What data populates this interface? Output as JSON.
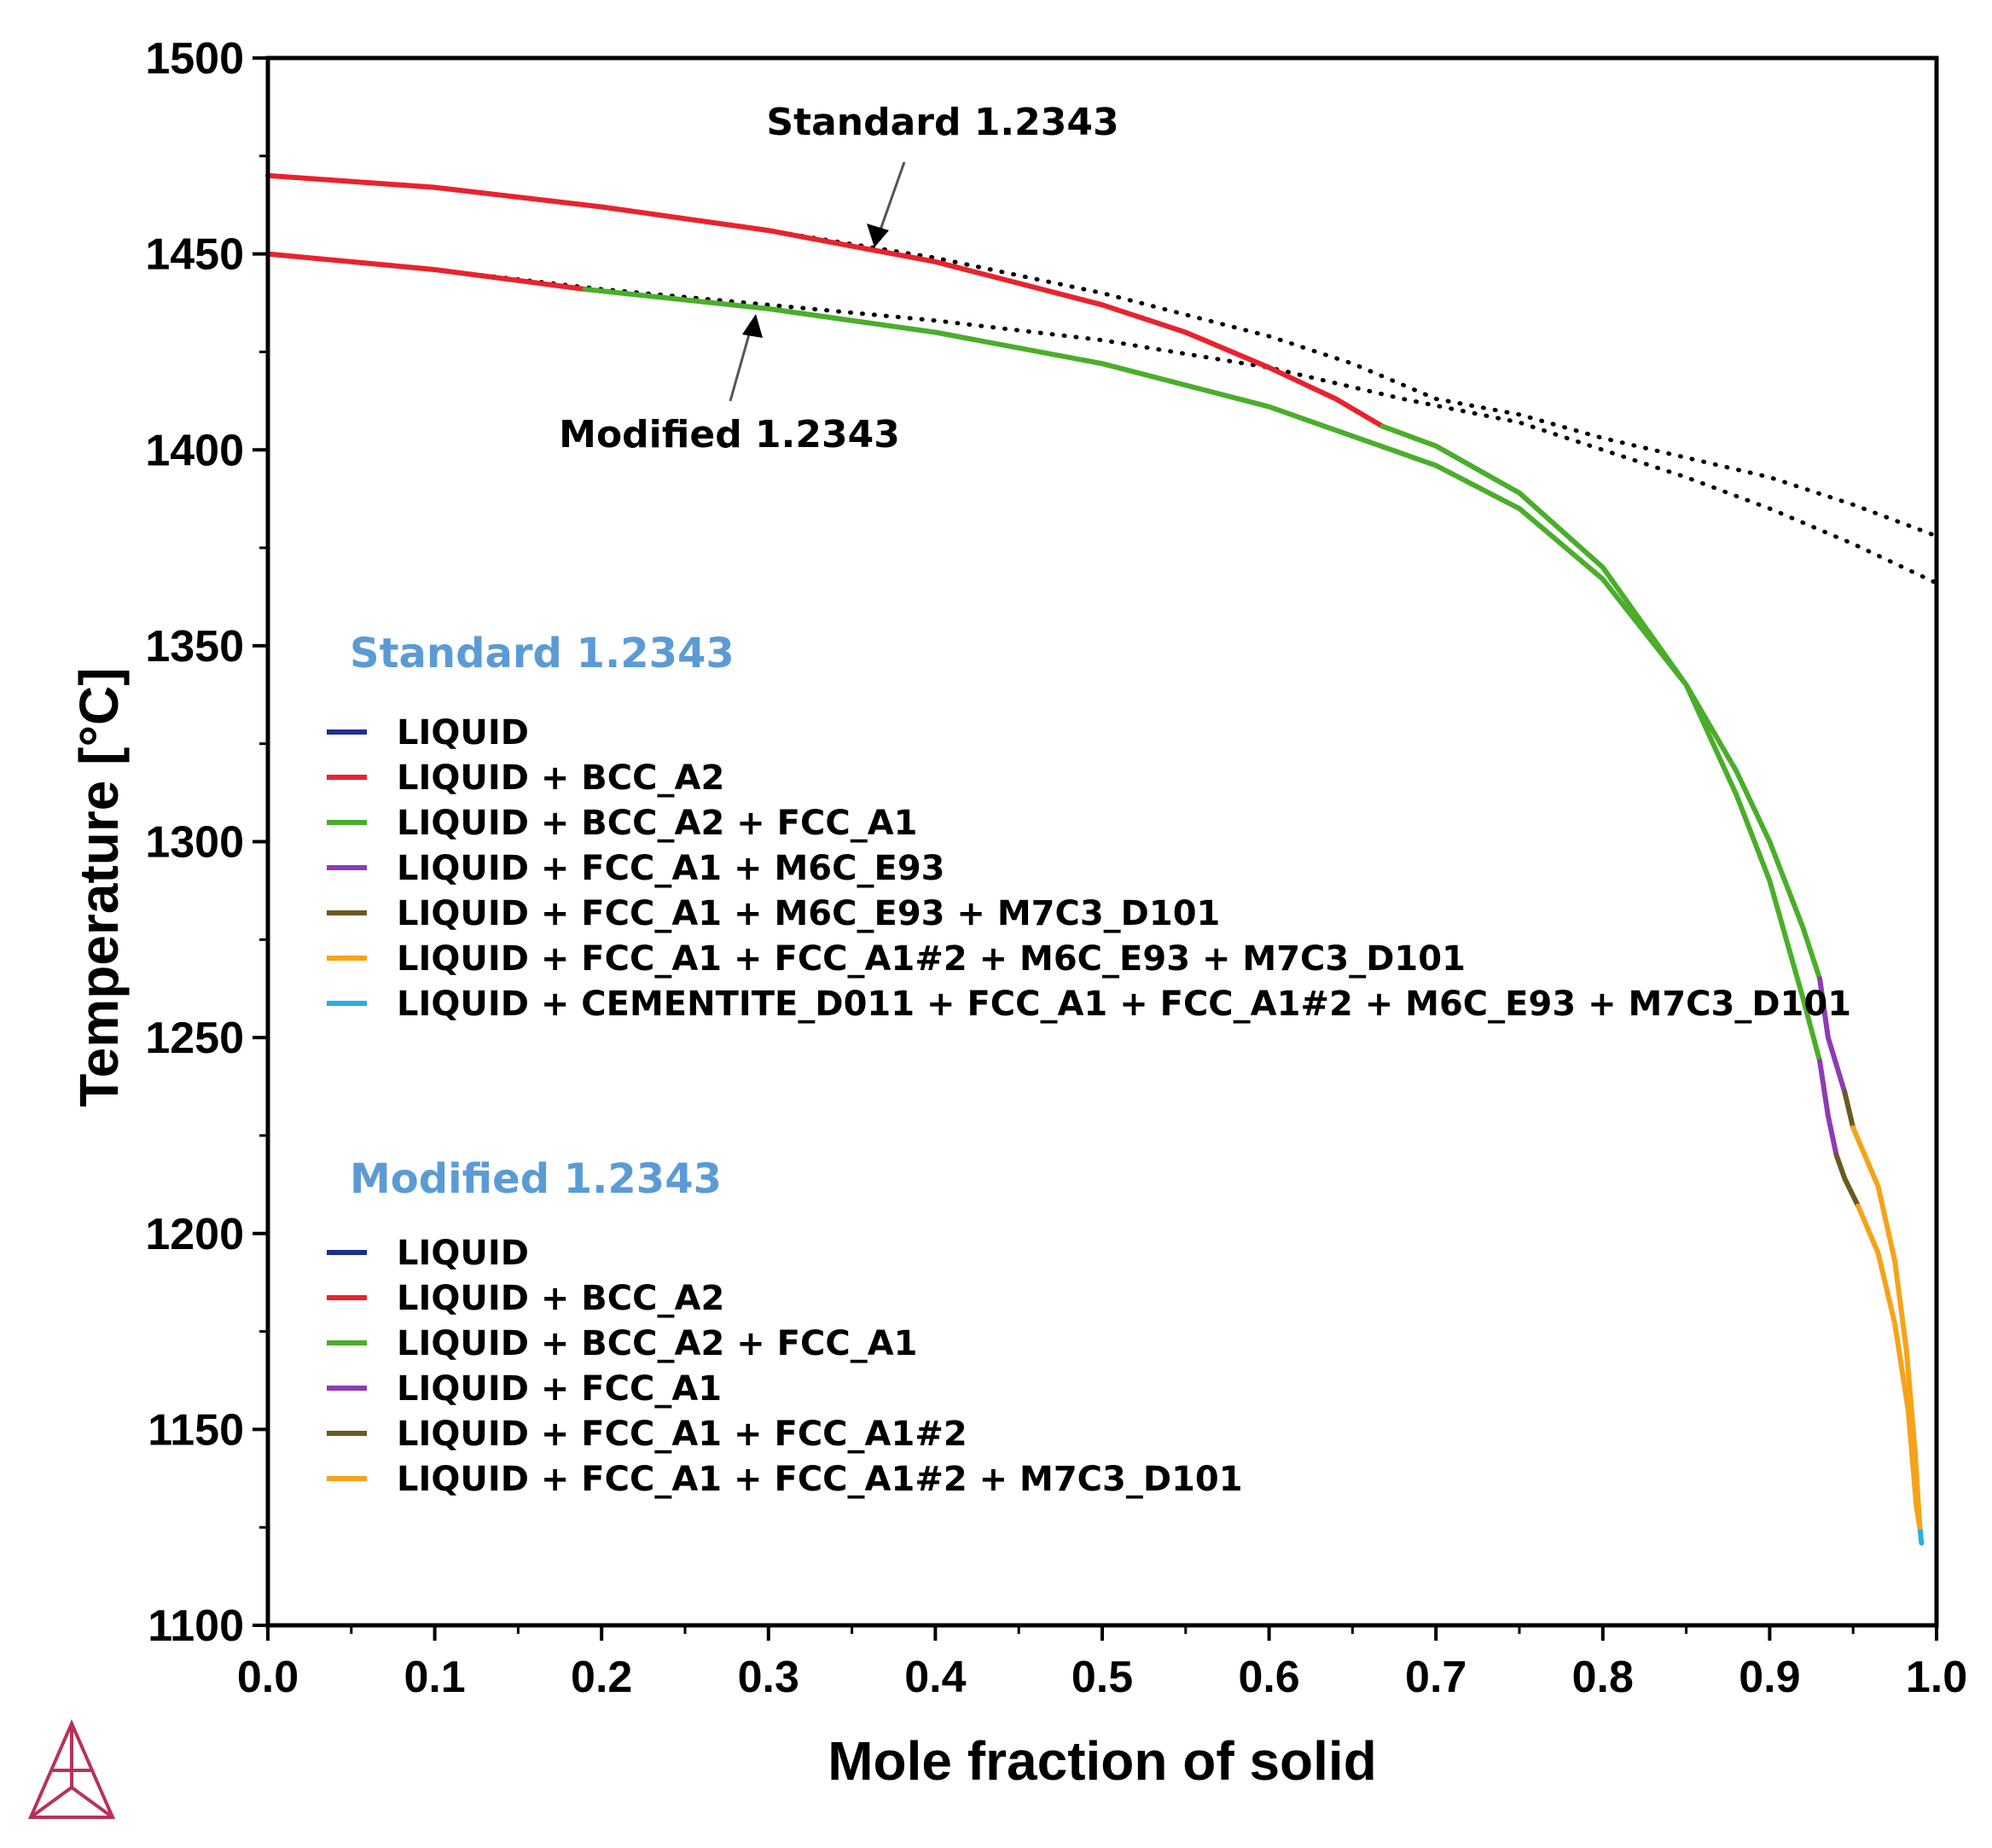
{
  "chart_data": {
    "type": "line",
    "xlabel": "Mole fraction of solid",
    "ylabel": "Temperature [°C]",
    "xlim": [
      0.0,
      1.0
    ],
    "ylim": [
      1100,
      1500
    ],
    "xticks": [
      "0.0",
      "0.1",
      "0.2",
      "0.3",
      "0.4",
      "0.5",
      "0.6",
      "0.7",
      "0.8",
      "0.9",
      "1.0"
    ],
    "yticks": [
      "1100",
      "1150",
      "1200",
      "1250",
      "1300",
      "1350",
      "1400",
      "1450",
      "1500"
    ],
    "annotations": [
      {
        "id": "std",
        "text": "Standard 1.2343",
        "target_x": 0.36,
        "target_y": 1451
      },
      {
        "id": "mod",
        "text": "Modified 1.2343",
        "target_x": 0.29,
        "target_y": 1437
      }
    ],
    "legends": [
      {
        "title": "Standard 1.2343",
        "entries": [
          {
            "label": "LIQUID",
            "color": "#1f2f8f"
          },
          {
            "label": "LIQUID + BCC_A2",
            "color": "#e8232d"
          },
          {
            "label": "LIQUID + BCC_A2 + FCC_A1",
            "color": "#4aae2a"
          },
          {
            "label": "LIQUID + FCC_A1 + M6C_E93",
            "color": "#8e3bb5"
          },
          {
            "label": "LIQUID + FCC_A1 + M6C_E93 + M7C3_D101",
            "color": "#6b5a1e"
          },
          {
            "label": "LIQUID + FCC_A1 + FCC_A1#2 + M6C_E93 + M7C3_D101",
            "color": "#f5a31a"
          },
          {
            "label": "LIQUID + CEMENTITE_D011 + FCC_A1 + FCC_A1#2 + M6C_E93 + M7C3_D101",
            "color": "#29aee6"
          }
        ]
      },
      {
        "title": "Modified 1.2343",
        "entries": [
          {
            "label": "LIQUID",
            "color": "#1f2f8f"
          },
          {
            "label": "LIQUID + BCC_A2",
            "color": "#e8232d"
          },
          {
            "label": "LIQUID + BCC_A2 + FCC_A1",
            "color": "#4aae2a"
          },
          {
            "label": "LIQUID + FCC_A1",
            "color": "#8e3bb5"
          },
          {
            "label": "LIQUID + FCC_A1 + FCC_A1#2",
            "color": "#6b5a1e"
          },
          {
            "label": "LIQUID + FCC_A1 + FCC_A1#2 + M7C3_D101",
            "color": "#f5a31a"
          }
        ]
      }
    ],
    "series": [
      {
        "name": "Standard 1.2343 (equilibrium)",
        "style": "dotted",
        "color": "#000000",
        "points": [
          [
            0,
            1470
          ],
          [
            0.1,
            1467
          ],
          [
            0.2,
            1462
          ],
          [
            0.3,
            1456
          ],
          [
            0.4,
            1449
          ],
          [
            0.5,
            1440
          ],
          [
            0.6,
            1429
          ],
          [
            0.65,
            1422
          ],
          [
            0.7,
            1413
          ],
          [
            0.75,
            1409
          ],
          [
            0.8,
            1403
          ],
          [
            0.85,
            1398
          ],
          [
            0.9,
            1393
          ],
          [
            0.95,
            1386
          ],
          [
            1.0,
            1378
          ]
        ]
      },
      {
        "name": "Modified 1.2343 (equilibrium)",
        "style": "dotted",
        "color": "#000000",
        "points": [
          [
            0,
            1450
          ],
          [
            0.1,
            1446
          ],
          [
            0.2,
            1441
          ],
          [
            0.3,
            1437
          ],
          [
            0.4,
            1433
          ],
          [
            0.5,
            1428
          ],
          [
            0.6,
            1421
          ],
          [
            0.68,
            1413
          ],
          [
            0.75,
            1407
          ],
          [
            0.8,
            1400
          ],
          [
            0.85,
            1393
          ],
          [
            0.9,
            1385
          ],
          [
            0.95,
            1376
          ],
          [
            1.0,
            1366
          ]
        ]
      },
      {
        "name": "Standard: LIQUID + BCC_A2",
        "color": "#e8232d",
        "points": [
          [
            0,
            1470
          ],
          [
            0.1,
            1467
          ],
          [
            0.2,
            1462
          ],
          [
            0.3,
            1456
          ],
          [
            0.4,
            1448
          ],
          [
            0.5,
            1437
          ],
          [
            0.55,
            1430
          ],
          [
            0.6,
            1421
          ],
          [
            0.64,
            1413
          ],
          [
            0.668,
            1406
          ]
        ]
      },
      {
        "name": "Standard: LIQUID + BCC_A2 + FCC_A1",
        "color": "#4aae2a",
        "points": [
          [
            0.668,
            1406
          ],
          [
            0.7,
            1401
          ],
          [
            0.75,
            1389
          ],
          [
            0.8,
            1370
          ],
          [
            0.85,
            1340
          ],
          [
            0.88,
            1312
          ],
          [
            0.9,
            1290
          ],
          [
            0.92,
            1260
          ],
          [
            0.93,
            1244
          ]
        ]
      },
      {
        "name": "Standard: LIQUID + FCC_A1 + M6C_E93",
        "color": "#8e3bb5",
        "points": [
          [
            0.93,
            1244
          ],
          [
            0.935,
            1230
          ],
          [
            0.94,
            1220
          ]
        ]
      },
      {
        "name": "Standard: LIQUID + FCC_A1 + M6C_E93 + M7C3_D101",
        "color": "#6b5a1e",
        "points": [
          [
            0.94,
            1220
          ],
          [
            0.945,
            1214
          ],
          [
            0.953,
            1207
          ]
        ]
      },
      {
        "name": "Standard: LIQUID + FCC_A1 + FCC_A1#2 + M6C_E93 + M7C3_D101",
        "color": "#f5a31a",
        "points": [
          [
            0.953,
            1207
          ],
          [
            0.965,
            1195
          ],
          [
            0.975,
            1177
          ],
          [
            0.983,
            1155
          ],
          [
            0.988,
            1130
          ],
          [
            0.99,
            1125
          ]
        ]
      },
      {
        "name": "Standard: LIQUID + CEMENTITE_D011 + FCC_A1 + FCC_A1#2 + M6C_E93 + M7C3_D101",
        "color": "#29aee6",
        "points": [
          [
            0.99,
            1125
          ],
          [
            0.991,
            1121
          ]
        ]
      },
      {
        "name": "Modified: LIQUID + BCC_A2",
        "color": "#e8232d",
        "points": [
          [
            0,
            1450
          ],
          [
            0.1,
            1446
          ],
          [
            0.19,
            1441
          ]
        ]
      },
      {
        "name": "Modified: LIQUID + BCC_A2 + FCC_A1",
        "color": "#4aae2a",
        "points": [
          [
            0.19,
            1441
          ],
          [
            0.3,
            1436
          ],
          [
            0.4,
            1430
          ],
          [
            0.5,
            1422
          ],
          [
            0.6,
            1411
          ],
          [
            0.7,
            1396
          ],
          [
            0.75,
            1385
          ],
          [
            0.8,
            1367
          ],
          [
            0.85,
            1340
          ],
          [
            0.88,
            1318
          ],
          [
            0.9,
            1300
          ],
          [
            0.92,
            1278
          ],
          [
            0.93,
            1265
          ]
        ]
      },
      {
        "name": "Modified: LIQUID + FCC_A1",
        "color": "#8e3bb5",
        "points": [
          [
            0.93,
            1265
          ],
          [
            0.935,
            1250
          ],
          [
            0.945,
            1236
          ]
        ]
      },
      {
        "name": "Modified: LIQUID + FCC_A1 + FCC_A1#2",
        "color": "#6b5a1e",
        "points": [
          [
            0.945,
            1236
          ],
          [
            0.95,
            1227
          ]
        ]
      },
      {
        "name": "Modified: LIQUID + FCC_A1 + FCC_A1#2 + M7C3_D101",
        "color": "#f5a31a",
        "points": [
          [
            0.95,
            1227
          ],
          [
            0.965,
            1212
          ],
          [
            0.975,
            1193
          ],
          [
            0.982,
            1170
          ],
          [
            0.987,
            1145
          ],
          [
            0.99,
            1125
          ]
        ]
      }
    ]
  }
}
